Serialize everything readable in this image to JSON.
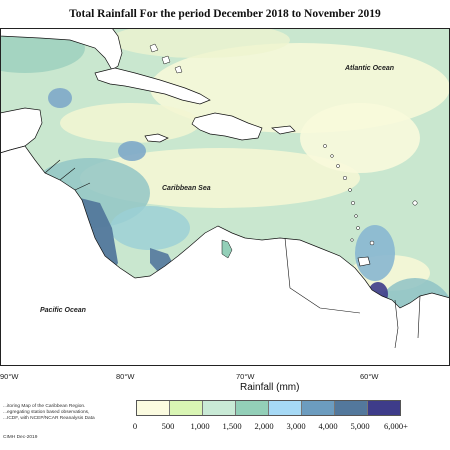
{
  "title": "Total Rainfall For the period December 2018 to November 2019",
  "ocean_labels": {
    "atlantic": "Atlantic Ocean",
    "caribbean": "Caribbean Sea",
    "pacific": "Pacific Ocean"
  },
  "longitude_ticks": [
    "90°W",
    "80°W",
    "70°W",
    "60°W"
  ],
  "legend": {
    "title": "Rainfall (mm)",
    "labels": [
      "0",
      "500",
      "1,000",
      "1,500",
      "2,000",
      "3,000",
      "4,000",
      "5,000",
      "6,000+"
    ],
    "colors": [
      "#fbfbe0",
      "#d9f5b4",
      "#c9ead6",
      "#93cfb8",
      "#a6d9f5",
      "#6c9cbf",
      "#53789c",
      "#3e3c8a"
    ]
  },
  "source_note": "...itoring Map of the Caribbean Region. ...egregating station based observations, ...ICDF, with NCEP/NCAR Reanalysis Data",
  "credit": "CIMH Dec-2019",
  "colors": {
    "land": "#ffffff",
    "coast": "#111111",
    "base_rain": "#c7e6c7"
  }
}
